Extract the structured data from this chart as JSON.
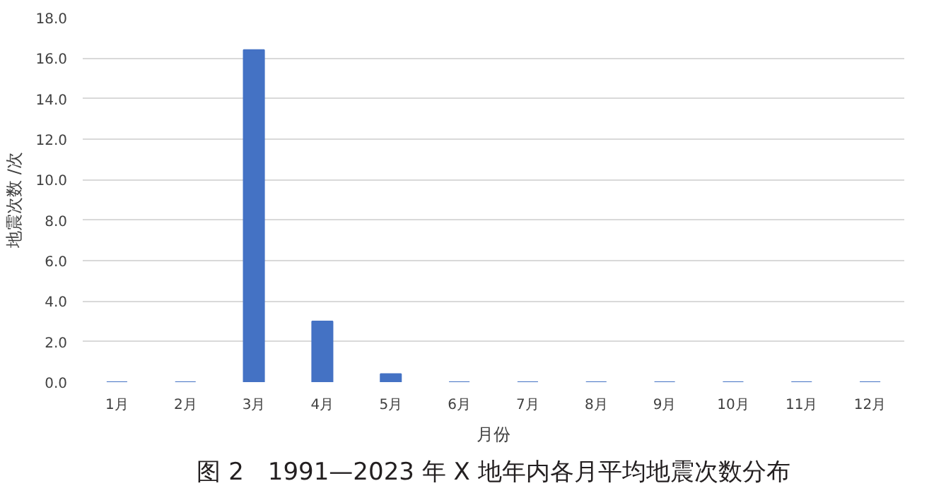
{
  "chart_data": {
    "type": "bar",
    "categories": [
      "1月",
      "2月",
      "3月",
      "4月",
      "5月",
      "6月",
      "7月",
      "8月",
      "9月",
      "10月",
      "11月",
      "12月"
    ],
    "values": [
      0,
      0,
      16.4,
      3.0,
      0.4,
      0,
      0,
      0,
      0,
      0,
      0,
      0
    ],
    "color": "#4472c4",
    "xlabel": "月份",
    "ylabel": "地震次数 /次",
    "ylim": [
      0,
      18
    ],
    "yticks": [
      {
        "value": 0,
        "label": "0.0"
      },
      {
        "value": 2,
        "label": "2.0"
      },
      {
        "value": 4,
        "label": "4.0"
      },
      {
        "value": 6,
        "label": "6.0"
      },
      {
        "value": 8,
        "label": "8.0"
      },
      {
        "value": 10,
        "label": "10.0"
      },
      {
        "value": 12,
        "label": "12.0"
      },
      {
        "value": 14,
        "label": "14.0"
      },
      {
        "value": 16,
        "label": "16.0"
      },
      {
        "value": 18,
        "label": "18.0"
      }
    ],
    "grid": "y",
    "annotations": [
      "图 2　1991—2023 年 X 地年内各月平均地震次数分布"
    ]
  }
}
